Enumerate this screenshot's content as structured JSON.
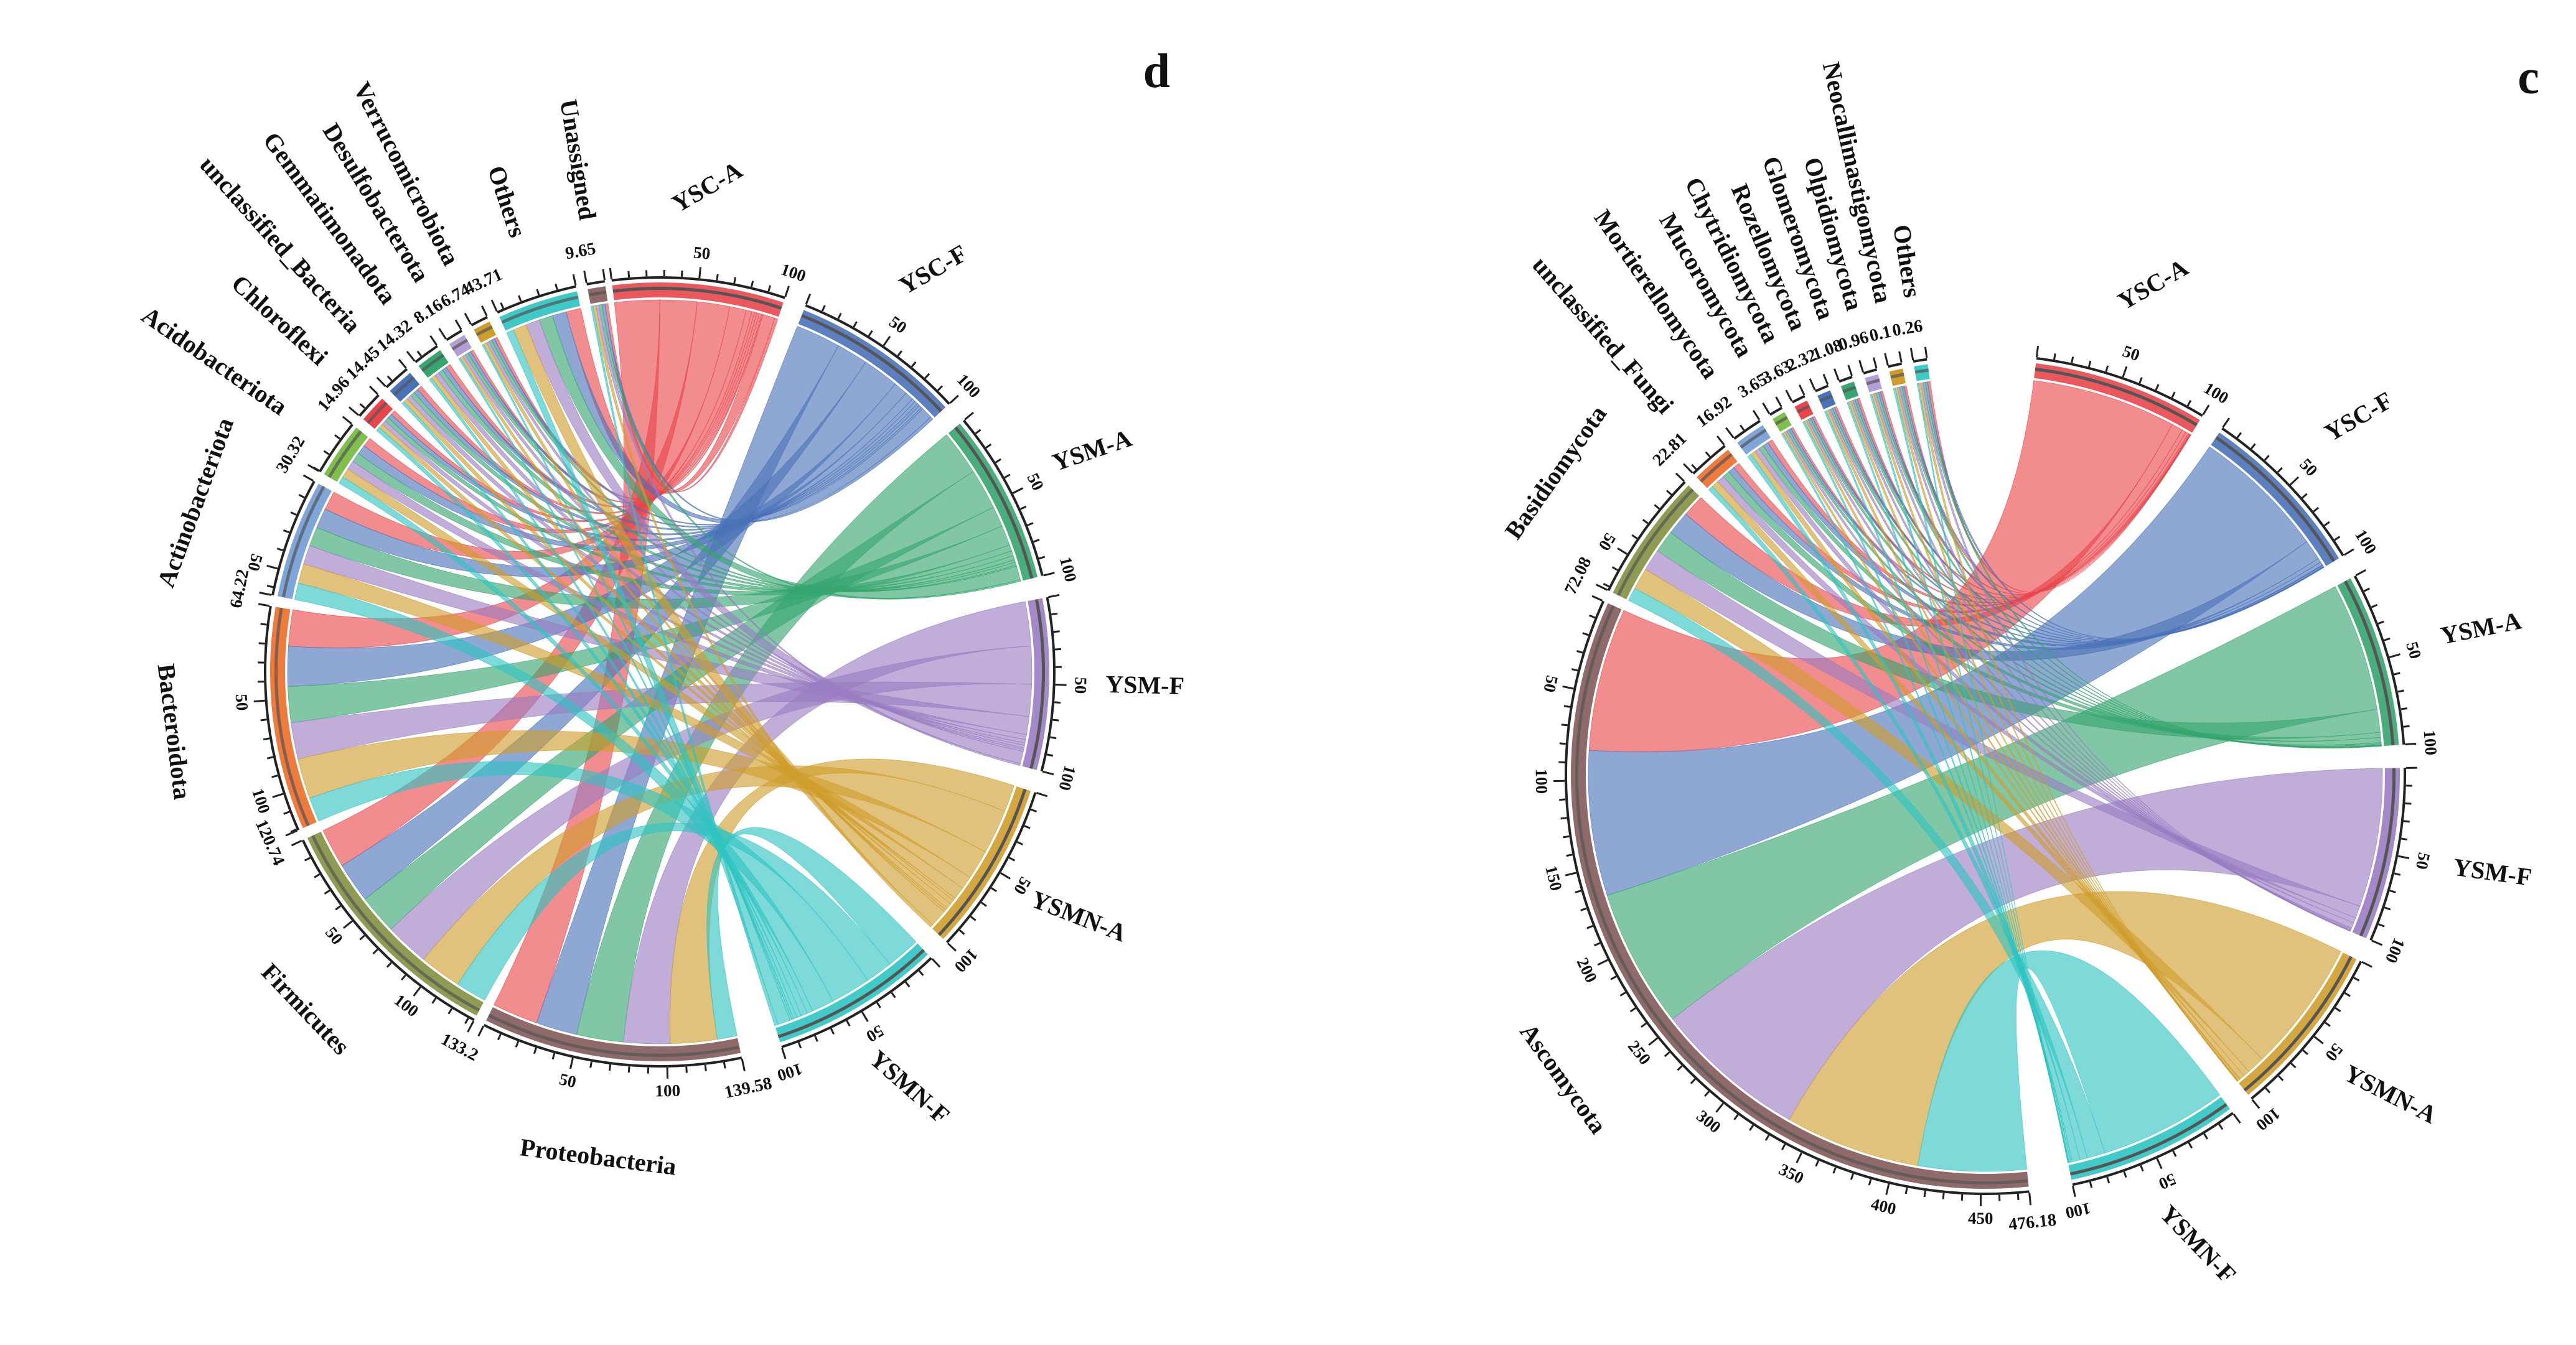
{
  "colors": {
    "YSC-A": "#e8464b",
    "YSC-F": "#4a72b8",
    "YSM-A": "#36a56e",
    "YSM-F": "#9a7cc2",
    "YSMN-A": "#cf9d2c",
    "YSMN-F": "#2ec4c2",
    "Proteobacteria": "#8e6a6a",
    "Firmicutes": "#8e9b52",
    "Bacteroidota": "#ee7a3c",
    "Actinobacteriota": "#7ea6d8",
    "Acidobacteriota": "#7fbf4c",
    "Chloroflexi": "#e8464b",
    "unclassified_Bacteria": "#4a72b8",
    "Gemmatimonadota": "#36a56e",
    "Desulfobacterota": "#b29fd3",
    "Verrucomicrobiota": "#cf9d2c",
    "Others": "#3ec9c6",
    "Unassigned": "#8e6a6a",
    "Ascomycota": "#8e6a6a",
    "Basidiomycota": "#8e9b52",
    "unclassified_Fungi": "#ee7a3c",
    "Mortierellomycota": "#7ea6d8",
    "Mucoromycota": "#7fbf4c",
    "Chytridiomycota": "#e8464b",
    "Rozellomycota": "#4a72b8",
    "Glomeromycota": "#36a56e",
    "Olpidiomycota": "#b29fd3",
    "Neocallimastigomycota": "#cf9d2c",
    "Others_fungi": "#3ec9c6"
  },
  "chart_data": [
    {
      "type": "chord",
      "panel_label": "d",
      "samples": [
        "YSC-A",
        "YSC-F",
        "YSM-A",
        "YSM-F",
        "YSMN-A",
        "YSMN-F"
      ],
      "sample_ticks": [
        "50",
        "100"
      ],
      "groups": [
        {
          "name": "Proteobacteria",
          "total": 139.58,
          "total_label": "139.58",
          "ticks": [
            "50",
            "100"
          ]
        },
        {
          "name": "Firmicutes",
          "total": 133.2,
          "total_label": "133.2",
          "ticks": [
            "50",
            "100"
          ]
        },
        {
          "name": "Bacteroidota",
          "total": 120.74,
          "total_label": "120.74",
          "ticks": [
            "50",
            "100"
          ]
        },
        {
          "name": "Actinobacteriota",
          "total": 64.22,
          "total_label": "64.22",
          "ticks": [
            "50"
          ]
        },
        {
          "name": "Acidobacteriota",
          "total": 30.32,
          "total_label": "30.32",
          "ticks": []
        },
        {
          "name": "Chloroflexi",
          "total": 14.96,
          "total_label": "14.96",
          "ticks": []
        },
        {
          "name": "unclassified_Bacteria",
          "total": 14.45,
          "total_label": "14.45",
          "ticks": []
        },
        {
          "name": "Gemmatimonadota",
          "total": 14.32,
          "total_label": "14.32",
          "ticks": []
        },
        {
          "name": "Desulfobacterota",
          "total": 8.16,
          "total_label": "8.16",
          "ticks": []
        },
        {
          "name": "Verrucomicrobiota",
          "total": 6.74,
          "total_label": "6.74",
          "ticks": []
        },
        {
          "name": "Others",
          "total": 43.71,
          "total_label": "43.71",
          "ticks": []
        },
        {
          "name": "Unassigned",
          "total": 9.65,
          "total_label": "9.65",
          "ticks": []
        }
      ]
    },
    {
      "type": "chord",
      "panel_label": "c",
      "samples": [
        "YSC-A",
        "YSC-F",
        "YSM-A",
        "YSM-F",
        "YSMN-A",
        "YSMN-F"
      ],
      "sample_ticks": [
        "50",
        "100"
      ],
      "groups": [
        {
          "name": "Ascomycota",
          "total": 476.18,
          "total_label": "476.18",
          "ticks": [
            "50",
            "100",
            "150",
            "200",
            "250",
            "300",
            "350",
            "400",
            "450"
          ]
        },
        {
          "name": "Basidiomycota",
          "total": 72.08,
          "total_label": "72.08",
          "ticks": [
            "50"
          ]
        },
        {
          "name": "unclassified_Fungi",
          "total": 22.81,
          "total_label": "22.81",
          "ticks": []
        },
        {
          "name": "Mortierellomycota",
          "total": 16.92,
          "total_label": "16.92",
          "ticks": []
        },
        {
          "name": "Mucoromycota",
          "total": 3.65,
          "total_label": "3.65",
          "ticks": []
        },
        {
          "name": "Chytridiomycota",
          "total": 3.63,
          "total_label": "3.63",
          "ticks": []
        },
        {
          "name": "Rozellomycota",
          "total": 2.32,
          "total_label": "2.32",
          "ticks": []
        },
        {
          "name": "Glomeromycota",
          "total": 1.08,
          "total_label": "1.08",
          "ticks": []
        },
        {
          "name": "Olpidiomycota",
          "total": 0.96,
          "total_label": "0.96",
          "ticks": []
        },
        {
          "name": "Neocallimastigomycota",
          "total": 0.1,
          "total_label": "0.1",
          "ticks": []
        },
        {
          "name": "Others",
          "color_key": "Others_fungi",
          "total": 0.26,
          "total_label": "0.26",
          "ticks": []
        }
      ]
    }
  ]
}
